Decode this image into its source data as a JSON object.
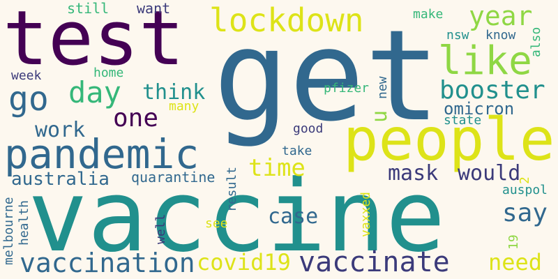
{
  "palette": {
    "background": "#fdf8ef",
    "dark_purple": "#440154",
    "indigo": "#3b3a7a",
    "steel_blue": "#31688e",
    "teal": "#21908d",
    "green": "#35b779",
    "lime": "#8fd744",
    "yellow": "#dde318"
  },
  "words": {
    "get": "get",
    "vaccine": "vaccine",
    "test": "test",
    "people": "people",
    "pandemic": "pandemic",
    "lockdown": "lockdown",
    "go": "go",
    "day": "day",
    "like": "like",
    "year": "year",
    "booster": "booster",
    "vaccination": "vaccination",
    "vaccinate": "vaccinate",
    "covid19": "covid19",
    "time": "time",
    "one": "one",
    "think": "think",
    "work": "work",
    "australia": "australia",
    "mask": "mask",
    "would": "would",
    "say": "say",
    "case": "case",
    "need": "need",
    "omicron": "omicron",
    "u": "u",
    "quarantine": "quarantine",
    "still": "still",
    "want": "want",
    "make": "make",
    "nsw": "nsw",
    "know": "know",
    "also": "also",
    "week": "week",
    "home": "home",
    "new": "new",
    "pfizer": "pfizer",
    "many": "many",
    "state": "state",
    "good": "good",
    "take": "take",
    "result": "result",
    "vaxxed": "vaxxed",
    "two": "2",
    "auspol": "auspol",
    "melbourne": "melbourne",
    "health": "health",
    "well": "well",
    "see": "see",
    "nineteen": "19"
  }
}
